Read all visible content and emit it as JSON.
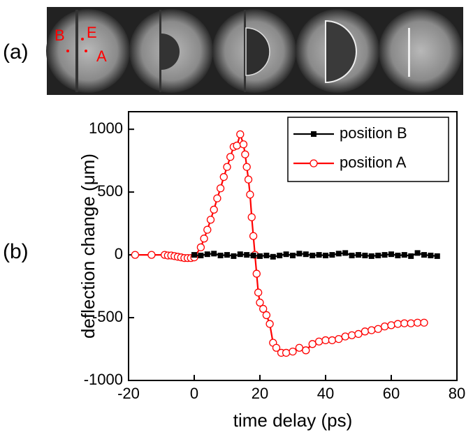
{
  "panel_a": {
    "label": "(a)",
    "points": [
      "B",
      "E",
      "A"
    ]
  },
  "panel_b_label": "(b)",
  "chart_data": {
    "type": "line",
    "x_label": "time delay (ps)",
    "y_label": "deflection change (μm)",
    "xlim": [
      -20,
      80
    ],
    "xticks": [
      -20,
      0,
      20,
      40,
      60,
      80
    ],
    "ylim": [
      -1000,
      1140
    ],
    "yticks": [
      -1000,
      -500,
      0,
      500,
      1000
    ],
    "legend": "upper right",
    "series": [
      {
        "name": "position B",
        "color": "#000000",
        "marker": "square",
        "x": [
          0,
          2,
          4,
          6,
          8,
          10,
          12,
          14,
          16,
          18,
          20,
          22,
          24,
          26,
          28,
          30,
          32,
          34,
          36,
          38,
          40,
          42,
          44,
          46,
          48,
          50,
          52,
          54,
          56,
          58,
          60,
          62,
          64,
          66,
          68,
          70,
          72,
          74
        ],
        "values": [
          0,
          -5,
          5,
          10,
          -5,
          0,
          -10,
          5,
          0,
          -5,
          -10,
          -5,
          -15,
          -5,
          5,
          -5,
          10,
          5,
          -5,
          0,
          -5,
          0,
          10,
          15,
          -5,
          0,
          -5,
          -10,
          -5,
          0,
          5,
          -5,
          0,
          -10,
          15,
          0,
          -5,
          -10
        ]
      },
      {
        "name": "position A",
        "color": "#ff0000",
        "marker": "circle",
        "x": [
          -18,
          -13,
          -9,
          -8,
          -7,
          -6,
          -5,
          -4,
          -3,
          -2,
          -1,
          0,
          2,
          3,
          4,
          5,
          6,
          7,
          8,
          9,
          10,
          11,
          12,
          13,
          14,
          15,
          15.5,
          16,
          16.5,
          17,
          17.5,
          18,
          18.5,
          19,
          19.5,
          20,
          21,
          22,
          23,
          24,
          25,
          26.5,
          28,
          30,
          32,
          34,
          36,
          38,
          40,
          42,
          44,
          46,
          48,
          50,
          52,
          54,
          56,
          58,
          60,
          62,
          64,
          66,
          68,
          70
        ],
        "values": [
          0,
          0,
          0,
          -5,
          -5,
          -10,
          -15,
          -20,
          -25,
          -25,
          -25,
          -20,
          60,
          130,
          200,
          280,
          360,
          450,
          530,
          620,
          700,
          780,
          860,
          870,
          960,
          880,
          800,
          700,
          600,
          480,
          300,
          150,
          0,
          -150,
          -300,
          -380,
          -430,
          -480,
          -550,
          -700,
          -740,
          -780,
          -780,
          -770,
          -740,
          -760,
          -710,
          -690,
          -680,
          -680,
          -670,
          -650,
          -640,
          -630,
          -610,
          -600,
          -590,
          -570,
          -560,
          -550,
          -545,
          -545,
          -540,
          -540
        ]
      }
    ]
  }
}
